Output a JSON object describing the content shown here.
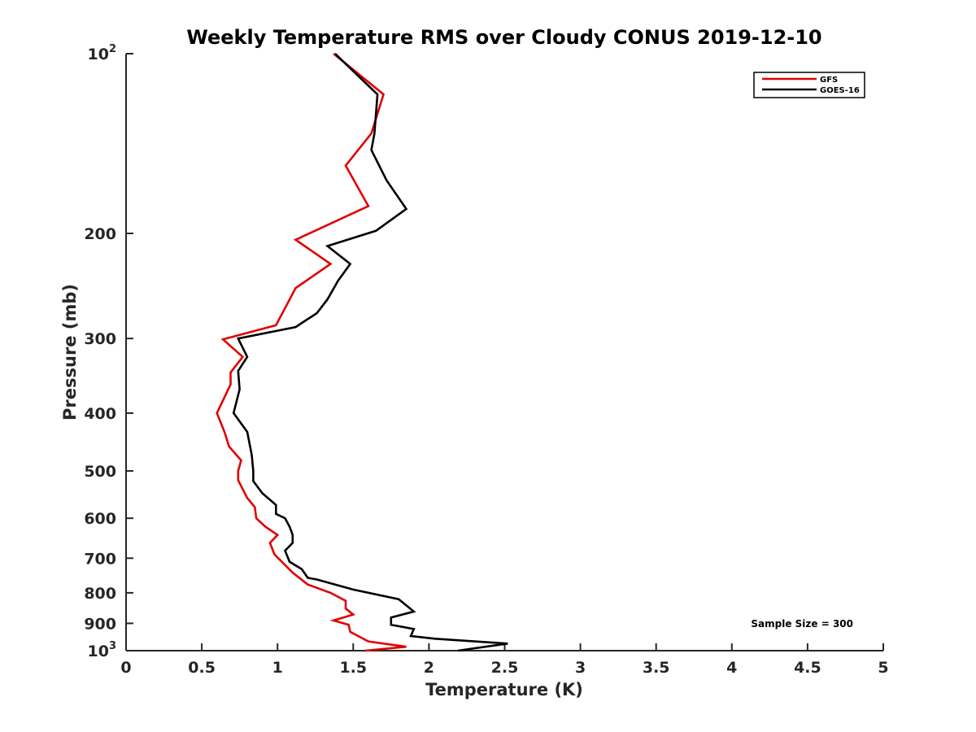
{
  "chart_data": {
    "type": "line",
    "title": "Weekly Temperature RMS over Cloudy CONUS 2019-12-10",
    "xlabel": "Temperature (K)",
    "ylabel": "Pressure (mb)",
    "xlim": [
      0,
      5
    ],
    "ylim": [
      100,
      1000
    ],
    "yscale": "log",
    "yreversed": true,
    "grid": false,
    "legend_location": "top-right",
    "x_ticks": [
      {
        "value": 0,
        "label": "0"
      },
      {
        "value": 0.5,
        "label": "0.5"
      },
      {
        "value": 1,
        "label": "1"
      },
      {
        "value": 1.5,
        "label": "1.5"
      },
      {
        "value": 2,
        "label": "2"
      },
      {
        "value": 2.5,
        "label": "2.5"
      },
      {
        "value": 3,
        "label": "3"
      },
      {
        "value": 3.5,
        "label": "3.5"
      },
      {
        "value": 4,
        "label": "4"
      },
      {
        "value": 4.5,
        "label": "4.5"
      },
      {
        "value": 5,
        "label": "5"
      }
    ],
    "y_ticks": [
      {
        "value": 100,
        "label": "10",
        "sup": "2"
      },
      {
        "value": 200,
        "label": "200",
        "sup": ""
      },
      {
        "value": 300,
        "label": "300",
        "sup": ""
      },
      {
        "value": 400,
        "label": "400",
        "sup": ""
      },
      {
        "value": 500,
        "label": "500",
        "sup": ""
      },
      {
        "value": 600,
        "label": "600",
        "sup": ""
      },
      {
        "value": 700,
        "label": "700",
        "sup": ""
      },
      {
        "value": 800,
        "label": "800",
        "sup": ""
      },
      {
        "value": 900,
        "label": "900",
        "sup": ""
      },
      {
        "value": 1000,
        "label": "10",
        "sup": "3"
      }
    ],
    "series": [
      {
        "name": "GFS",
        "color": "#e00000",
        "points": [
          [
            1.37,
            100
          ],
          [
            1.7,
            117
          ],
          [
            1.62,
            136
          ],
          [
            1.45,
            154
          ],
          [
            1.6,
            180
          ],
          [
            1.12,
            205
          ],
          [
            1.35,
            225
          ],
          [
            1.12,
            247
          ],
          [
            0.99,
            285
          ],
          [
            0.64,
            301
          ],
          [
            0.77,
            322
          ],
          [
            0.69,
            342
          ],
          [
            0.69,
            358
          ],
          [
            0.6,
            400
          ],
          [
            0.65,
            430
          ],
          [
            0.68,
            455
          ],
          [
            0.76,
            480
          ],
          [
            0.74,
            500
          ],
          [
            0.74,
            518
          ],
          [
            0.8,
            555
          ],
          [
            0.85,
            575
          ],
          [
            0.86,
            600
          ],
          [
            0.92,
            620
          ],
          [
            1.0,
            640
          ],
          [
            0.95,
            660
          ],
          [
            0.98,
            690
          ],
          [
            1.1,
            740
          ],
          [
            1.2,
            775
          ],
          [
            1.35,
            800
          ],
          [
            1.45,
            825
          ],
          [
            1.45,
            850
          ],
          [
            1.5,
            870
          ],
          [
            1.37,
            890
          ],
          [
            1.47,
            905
          ],
          [
            1.48,
            930
          ],
          [
            1.6,
            965
          ],
          [
            1.85,
            985
          ],
          [
            1.58,
            1000
          ]
        ]
      },
      {
        "name": "GOES-16",
        "color": "#000000",
        "points": [
          [
            1.38,
            100
          ],
          [
            1.66,
            117
          ],
          [
            1.64,
            136
          ],
          [
            1.62,
            145
          ],
          [
            1.72,
            163
          ],
          [
            1.85,
            182
          ],
          [
            1.65,
            198
          ],
          [
            1.33,
            210
          ],
          [
            1.48,
            225
          ],
          [
            1.4,
            240
          ],
          [
            1.33,
            258
          ],
          [
            1.26,
            272
          ],
          [
            1.12,
            287
          ],
          [
            0.74,
            300
          ],
          [
            0.8,
            322
          ],
          [
            0.74,
            340
          ],
          [
            0.75,
            365
          ],
          [
            0.71,
            400
          ],
          [
            0.8,
            430
          ],
          [
            0.83,
            470
          ],
          [
            0.84,
            500
          ],
          [
            0.84,
            520
          ],
          [
            0.9,
            545
          ],
          [
            0.99,
            570
          ],
          [
            0.99,
            590
          ],
          [
            1.05,
            600
          ],
          [
            1.08,
            620
          ],
          [
            1.1,
            640
          ],
          [
            1.1,
            660
          ],
          [
            1.05,
            680
          ],
          [
            1.08,
            710
          ],
          [
            1.16,
            730
          ],
          [
            1.2,
            755
          ],
          [
            1.26,
            760
          ],
          [
            1.5,
            790
          ],
          [
            1.8,
            820
          ],
          [
            1.9,
            860
          ],
          [
            1.75,
            880
          ],
          [
            1.75,
            905
          ],
          [
            1.9,
            920
          ],
          [
            1.88,
            945
          ],
          [
            2.04,
            955
          ],
          [
            2.52,
            973
          ],
          [
            2.19,
            1000
          ]
        ]
      }
    ],
    "annotations": [
      "Sample Size = 300"
    ]
  }
}
